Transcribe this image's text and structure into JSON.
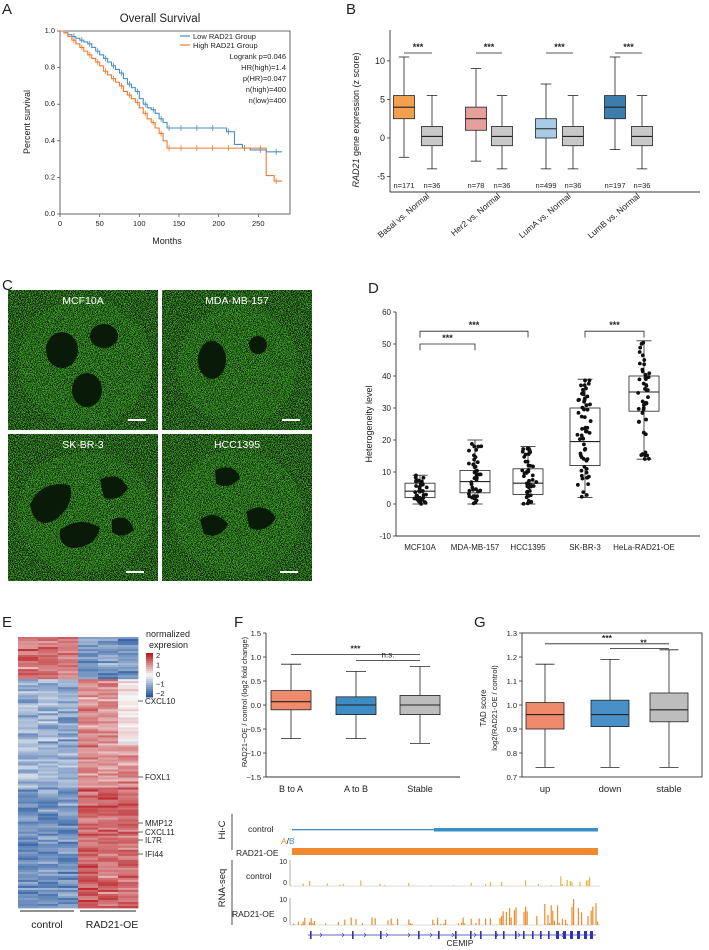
{
  "colors": {
    "low": "#4a8fc8",
    "high": "#ee7b30",
    "basal": "#f2a050",
    "her2": "#e6a09c",
    "luma": "#a8cbe6",
    "lumb": "#3b7dad",
    "normal": "#c8c8c8",
    "f_btoa": "#f08a6c",
    "f_atob": "#3d8dc4",
    "f_stable": "#bdbdbd",
    "g_up": "#f08a6c",
    "g_down": "#4a90c8",
    "g_stable": "#bdbdbd",
    "nucleus": "#3fa82a",
    "track_blue": "#3a8fc6",
    "track_orange": "#f08a30",
    "rna": "#ee8a2a",
    "gene": "#3333aa"
  },
  "panels": {
    "A": "A",
    "B": "B",
    "C": "C",
    "D": "D",
    "E": "E",
    "F": "F",
    "G": "G"
  },
  "panelA": {
    "chart_data": {
      "type": "line",
      "title": "Overall Survival",
      "xlabel": "Months",
      "ylabel": "Percent survival",
      "xlim": [
        0,
        290
      ],
      "ylim": [
        0,
        1.0
      ],
      "xticks": [
        "0",
        "50",
        "100",
        "150",
        "200",
        "250"
      ],
      "yticks": [
        "0.0",
        "0.2",
        "0.4",
        "0.6",
        "0.8",
        "1.0"
      ],
      "series": [
        {
          "name": "Low RAD21 Group",
          "x": [
            0,
            5,
            10,
            15,
            20,
            25,
            30,
            35,
            40,
            45,
            50,
            55,
            60,
            65,
            70,
            75,
            80,
            85,
            90,
            95,
            100,
            105,
            110,
            115,
            120,
            125,
            130,
            135,
            140,
            150,
            160,
            170,
            180,
            190,
            200,
            210,
            220,
            230,
            240,
            250,
            260,
            270,
            280
          ],
          "y": [
            1.0,
            0.99,
            0.98,
            0.97,
            0.96,
            0.95,
            0.94,
            0.93,
            0.91,
            0.89,
            0.87,
            0.85,
            0.83,
            0.81,
            0.79,
            0.77,
            0.74,
            0.71,
            0.69,
            0.67,
            0.63,
            0.6,
            0.58,
            0.57,
            0.55,
            0.52,
            0.5,
            0.47,
            0.47,
            0.47,
            0.47,
            0.47,
            0.47,
            0.47,
            0.47,
            0.45,
            0.38,
            0.36,
            0.35,
            0.35,
            0.34,
            0.34,
            0.34
          ]
        },
        {
          "name": "High RAD21 Group",
          "x": [
            0,
            5,
            10,
            15,
            20,
            25,
            30,
            35,
            40,
            45,
            50,
            55,
            60,
            65,
            70,
            75,
            80,
            85,
            90,
            95,
            100,
            105,
            110,
            115,
            120,
            125,
            130,
            135,
            140,
            150,
            160,
            170,
            180,
            190,
            200,
            210,
            220,
            230,
            240,
            250,
            260,
            270,
            280
          ],
          "y": [
            1.0,
            0.99,
            0.97,
            0.95,
            0.93,
            0.91,
            0.89,
            0.87,
            0.85,
            0.83,
            0.81,
            0.78,
            0.76,
            0.74,
            0.72,
            0.7,
            0.67,
            0.65,
            0.63,
            0.61,
            0.58,
            0.55,
            0.52,
            0.5,
            0.47,
            0.44,
            0.4,
            0.36,
            0.36,
            0.36,
            0.36,
            0.36,
            0.36,
            0.36,
            0.36,
            0.36,
            0.36,
            0.36,
            0.36,
            0.36,
            0.21,
            0.18,
            0.18
          ]
        }
      ],
      "legend": [
        "Low RAD21 Group",
        "High RAD21 Group"
      ],
      "annotations": [
        "Logrank p=0.046",
        "HR(high)=1.4",
        "p(HR)=0.047",
        "n(high)=400",
        "n(low)=400"
      ]
    }
  },
  "panelB": {
    "chart_data": {
      "type": "box",
      "ylabel_italic": "RAD21",
      "ylabel_rest": " gene expression (z score)",
      "ylim": [
        -7,
        14
      ],
      "yticks": [
        "-5",
        "0",
        "5",
        "10"
      ],
      "groups": [
        "Basal vs. Normal",
        "Her2 vs. Normal",
        "LumA vs. Normal",
        "LumB vs. Normal"
      ],
      "boxes": [
        {
          "name": "Basal",
          "n": "n=171",
          "min": -2.5,
          "q1": 2.5,
          "median": 4.0,
          "q3": 5.5,
          "max": 10.5
        },
        {
          "name": "Normal",
          "n": "n=36",
          "min": -4.0,
          "q1": -1.0,
          "median": 0.2,
          "q3": 1.5,
          "max": 5.5
        },
        {
          "name": "Her2",
          "n": "n=78",
          "min": -3.0,
          "q1": 1.0,
          "median": 2.5,
          "q3": 4.0,
          "max": 9.0
        },
        {
          "name": "Normal",
          "n": "n=36",
          "min": -4.0,
          "q1": -1.0,
          "median": 0.2,
          "q3": 1.5,
          "max": 5.5
        },
        {
          "name": "LumA",
          "n": "n=499",
          "min": -4.0,
          "q1": 0.0,
          "median": 1.2,
          "q3": 2.5,
          "max": 7.0
        },
        {
          "name": "Normal",
          "n": "n=36",
          "min": -4.0,
          "q1": -1.0,
          "median": 0.2,
          "q3": 1.5,
          "max": 5.5
        },
        {
          "name": "LumB",
          "n": "n=197",
          "min": -1.5,
          "q1": 2.5,
          "median": 4.0,
          "q3": 5.5,
          "max": 10.5
        },
        {
          "name": "Normal",
          "n": "n=36",
          "min": -4.0,
          "q1": -1.0,
          "median": 0.2,
          "q3": 1.5,
          "max": 5.5
        }
      ],
      "significance": [
        "***",
        "***",
        "***",
        "***"
      ]
    }
  },
  "panelC": {
    "cells": [
      "MCF10A",
      "MDA-MB-157",
      "SK-BR-3",
      "HCC1395"
    ]
  },
  "panelD": {
    "chart_data": {
      "type": "box",
      "ylabel": "Heterogeneity level",
      "ylim": [
        -10,
        60
      ],
      "yticks": [
        "-10",
        "0",
        "10",
        "20",
        "30",
        "40",
        "50",
        "60"
      ],
      "categories": [
        "MCF10A",
        "MDA-MB-157",
        "HCC1395",
        "SK-BR-3",
        "HeLa-RAD21-OE"
      ],
      "boxes": [
        {
          "min": 0,
          "q1": 2,
          "median": 4,
          "q3": 6.5,
          "max": 9
        },
        {
          "min": 0,
          "q1": 3.5,
          "median": 7,
          "q3": 10.5,
          "max": 20
        },
        {
          "min": 0,
          "q1": 3,
          "median": 6.5,
          "q3": 11,
          "max": 18
        },
        {
          "min": 2,
          "q1": 12,
          "median": 19.5,
          "q3": 30,
          "max": 39
        },
        {
          "min": 14,
          "q1": 29,
          "median": 35,
          "q3": 40,
          "max": 51
        }
      ],
      "significance": [
        "***",
        "***",
        "***"
      ]
    }
  },
  "panelE": {
    "legend_title": "normalized\nexpresion",
    "legend_ticks": [
      "2",
      "1",
      "0",
      "−1",
      "−2"
    ],
    "genes": [
      "CXCL10",
      "FOXL1",
      "MMP12",
      "CXCL11",
      "IL7R",
      "IFI44"
    ],
    "groups": [
      "control",
      "RAD21-OE"
    ]
  },
  "panelF": {
    "chart_data": {
      "type": "box",
      "ylabel": "RAD21−OE / control (log2 fold change)",
      "ylim": [
        -1.5,
        1.5
      ],
      "yticks": [
        "−1.5",
        "−1.0",
        "−0.5",
        "0.0",
        "0.5",
        "1.0",
        "1.5"
      ],
      "categories": [
        "B to A",
        "A to B",
        "Stable"
      ],
      "boxes": [
        {
          "min": -0.7,
          "q1": -0.1,
          "median": 0.07,
          "q3": 0.3,
          "max": 0.85
        },
        {
          "min": -0.7,
          "q1": -0.2,
          "median": 0.0,
          "q3": 0.17,
          "max": 0.7
        },
        {
          "min": -0.8,
          "q1": -0.2,
          "median": 0.0,
          "q3": 0.2,
          "max": 0.8
        }
      ],
      "significance": [
        "***",
        "n.s."
      ]
    }
  },
  "panelG": {
    "chart_data": {
      "type": "box",
      "ylabel_top": "TAD score",
      "ylabel_bottom": "log2(RAD21-OE / control)",
      "ylim": [
        0.7,
        1.3
      ],
      "yticks": [
        "0.7",
        "0.8",
        "0.9",
        "1.0",
        "1.1",
        "1.2",
        "1.3"
      ],
      "categories": [
        "up",
        "down",
        "stable"
      ],
      "boxes": [
        {
          "min": 0.74,
          "q1": 0.9,
          "median": 0.96,
          "q3": 1.01,
          "max": 1.17
        },
        {
          "min": 0.74,
          "q1": 0.91,
          "median": 0.96,
          "q3": 1.02,
          "max": 1.19
        },
        {
          "min": 0.74,
          "q1": 0.93,
          "median": 0.98,
          "q3": 1.05,
          "max": 1.23
        }
      ],
      "significance": [
        "***",
        "**"
      ]
    }
  },
  "panelH": {
    "hic_label": "Hi-C",
    "rnaseq_label": "RNA-seq",
    "control": "control",
    "rad21": "RAD21-OE",
    "ab_a": "A",
    "ab_slash": "/",
    "ab_b": "B",
    "scale10": "10",
    "scale0": "0",
    "gene": "CEMIP"
  }
}
